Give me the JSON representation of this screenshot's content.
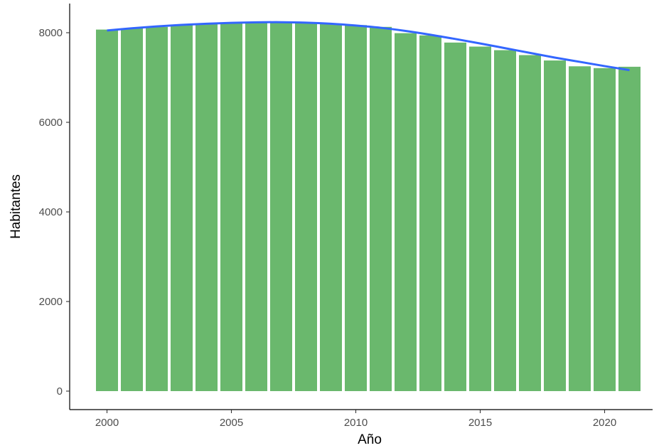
{
  "chart_data": {
    "type": "bar",
    "title": "",
    "xlabel": "Año",
    "ylabel": "Habitantes",
    "categories": [
      2000,
      2001,
      2002,
      2003,
      2004,
      2005,
      2006,
      2007,
      2008,
      2009,
      2010,
      2011,
      2012,
      2013,
      2014,
      2015,
      2016,
      2017,
      2018,
      2019,
      2020,
      2021
    ],
    "series": [
      {
        "values": [
          8070,
          8100,
          8130,
          8170,
          8200,
          8210,
          8220,
          8230,
          8220,
          8200,
          8170,
          8130,
          7990,
          7940,
          7780,
          7690,
          7610,
          7500,
          7380,
          7250,
          7210,
          7240
        ]
      }
    ],
    "trend": {
      "type": "smooth",
      "x": [
        2000,
        2001,
        2002,
        2003,
        2004,
        2005,
        2006,
        2007,
        2008,
        2009,
        2010,
        2011,
        2012,
        2013,
        2014,
        2015,
        2016,
        2017,
        2018,
        2019,
        2020,
        2021
      ],
      "y": [
        8050,
        8100,
        8140,
        8175,
        8200,
        8220,
        8232,
        8235,
        8225,
        8200,
        8160,
        8110,
        8040,
        7955,
        7860,
        7760,
        7655,
        7550,
        7445,
        7350,
        7255,
        7165
      ]
    },
    "xticks": [
      2000,
      2005,
      2010,
      2015,
      2020
    ],
    "yticks": [
      0,
      2000,
      4000,
      6000,
      8000
    ],
    "xlim": [
      1999.5,
      2021.5
    ],
    "ylim": [
      0,
      8700
    ],
    "colors": {
      "bar": "#6ab86d",
      "trend": "#3366ff"
    },
    "grid": false,
    "legend": "none"
  }
}
